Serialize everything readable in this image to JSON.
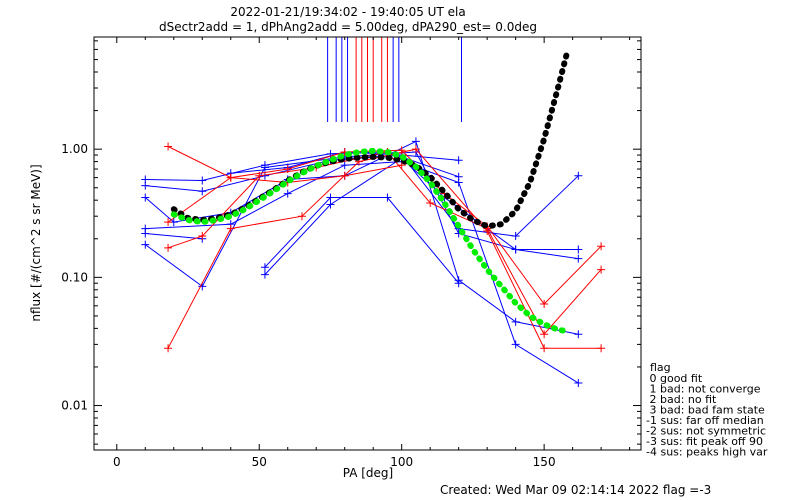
{
  "chart_data": {
    "type": "line",
    "title": "2022-01-21/19:34:02 - 19:40:05 UT ela",
    "subtitle": "dSectr2add = 1, dPhAng2add = 5.00deg, dPA290_est=    0.0deg",
    "xlabel": "PA [deg]",
    "ylabel": "nflux [#/(cm^2 s sr MeV)]",
    "xlim": [
      -8,
      184
    ],
    "ylim": [
      0.0045,
      7.5
    ],
    "yscale": "log",
    "xticks": [
      0,
      50,
      100,
      150
    ],
    "xtick_labels": [
      "0",
      "50",
      "100",
      "150"
    ],
    "yticks": [
      0.01,
      0.1,
      1
    ],
    "ytick_labels": [
      "0.01",
      "0.10",
      "1.00"
    ],
    "grid": false,
    "top_markers": {
      "blue": [
        74,
        77,
        79,
        81,
        97,
        99,
        121
      ],
      "red": [
        84,
        86,
        88,
        90,
        93,
        95
      ]
    },
    "series": [
      {
        "color": "#0000ff",
        "marker": "+",
        "x": [
          10,
          30,
          52,
          75,
          95,
          120
        ],
        "y": [
          0.58,
          0.57,
          0.75,
          0.92,
          0.95,
          0.61
        ]
      },
      {
        "color": "#0000ff",
        "marker": "+",
        "x": [
          10,
          30,
          52,
          75,
          100,
          120,
          140,
          162
        ],
        "y": [
          0.52,
          0.47,
          0.62,
          0.82,
          0.9,
          0.24,
          0.21,
          0.62
        ]
      },
      {
        "color": "#0000ff",
        "marker": "+",
        "x": [
          10,
          20,
          40,
          60,
          80,
          105,
          120,
          140,
          162
        ],
        "y": [
          0.42,
          0.27,
          0.32,
          0.58,
          0.62,
          1.15,
          0.095,
          0.045,
          0.036
        ]
      },
      {
        "color": "#0000ff",
        "marker": "+",
        "x": [
          10,
          30,
          52,
          80,
          105,
          120,
          140,
          162
        ],
        "y": [
          0.18,
          0.085,
          0.72,
          0.87,
          0.95,
          0.22,
          0.165,
          0.165
        ]
      },
      {
        "color": "#0000ff",
        "marker": "+",
        "x": [
          10,
          40,
          60,
          80,
          100,
          120,
          140,
          162
        ],
        "y": [
          0.24,
          0.26,
          0.45,
          0.75,
          0.8,
          0.55,
          0.03,
          0.015
        ]
      },
      {
        "color": "#0000ff",
        "marker": "+",
        "x": [
          52,
          75,
          100,
          115,
          140,
          162
        ],
        "y": [
          0.105,
          0.37,
          0.85,
          0.42,
          0.165,
          0.14
        ]
      },
      {
        "color": "#0000ff",
        "marker": "+",
        "x": [
          52,
          75,
          95,
          120
        ],
        "y": [
          0.12,
          0.42,
          0.42,
          0.09
        ]
      },
      {
        "color": "#0000ff",
        "marker": "+",
        "x": [
          40,
          60,
          80,
          100,
          120
        ],
        "y": [
          0.65,
          0.72,
          0.95,
          0.9,
          0.82
        ]
      },
      {
        "color": "#0000ff",
        "marker": "+",
        "x": [
          10,
          30
        ],
        "y": [
          0.22,
          0.2
        ]
      },
      {
        "color": "#ff0000",
        "marker": "+",
        "x": [
          18,
          40,
          60,
          80,
          100,
          115,
          130,
          150,
          170
        ],
        "y": [
          1.05,
          0.6,
          0.7,
          0.95,
          0.98,
          0.45,
          0.25,
          0.062,
          0.175
        ]
      },
      {
        "color": "#ff0000",
        "marker": "+",
        "x": [
          18,
          40,
          65,
          85,
          105,
          130,
          150,
          170
        ],
        "y": [
          0.028,
          0.24,
          0.3,
          0.8,
          1.0,
          0.23,
          0.028,
          0.028
        ]
      },
      {
        "color": "#ff0000",
        "marker": "+",
        "x": [
          18,
          30,
          50,
          70,
          95,
          110,
          130,
          150,
          170
        ],
        "y": [
          0.17,
          0.21,
          0.62,
          0.72,
          0.95,
          0.38,
          0.24,
          0.036,
          0.115
        ]
      },
      {
        "color": "#ff0000",
        "marker": "+",
        "x": [
          18,
          40,
          60,
          80,
          100
        ],
        "y": [
          0.27,
          0.6,
          0.55,
          0.62,
          0.75
        ]
      }
    ],
    "fits": [
      {
        "color": "#000000",
        "style": "dotted-thick",
        "x": [
          20,
          25,
          30,
          35,
          40,
          45,
          50,
          55,
          60,
          65,
          70,
          75,
          80,
          85,
          90,
          95,
          100,
          105,
          110,
          115,
          120,
          125,
          130,
          135,
          140,
          145,
          150,
          155,
          158
        ],
        "y": [
          0.34,
          0.29,
          0.28,
          0.29,
          0.31,
          0.35,
          0.41,
          0.48,
          0.57,
          0.66,
          0.74,
          0.8,
          0.84,
          0.86,
          0.87,
          0.86,
          0.82,
          0.74,
          0.61,
          0.46,
          0.34,
          0.28,
          0.25,
          0.26,
          0.33,
          0.55,
          1.2,
          3.1,
          5.6
        ]
      },
      {
        "color": "#00ee00",
        "style": "dotted-thick",
        "x": [
          20,
          25,
          30,
          35,
          40,
          45,
          50,
          55,
          60,
          65,
          70,
          75,
          80,
          85,
          90,
          95,
          100,
          105,
          110,
          115,
          120,
          125,
          130,
          135,
          140,
          145,
          150,
          155,
          158
        ],
        "y": [
          0.31,
          0.28,
          0.27,
          0.28,
          0.3,
          0.34,
          0.4,
          0.47,
          0.56,
          0.65,
          0.74,
          0.82,
          0.9,
          0.95,
          0.97,
          0.95,
          0.88,
          0.73,
          0.55,
          0.38,
          0.25,
          0.165,
          0.115,
          0.085,
          0.063,
          0.05,
          0.043,
          0.039,
          0.038
        ]
      }
    ],
    "legend": {
      "position": "right-bottom",
      "title": "flag",
      "entries": [
        " 0 good fit",
        " 1 bad: not converge",
        " 2 bad: no fit",
        " 3 bad: bad fam state",
        "-1 sus: far off median",
        "-2 sus: not symmetric",
        "-3 sus: fit peak off 90",
        "-4 sus: peaks high var"
      ]
    },
    "footer": "Created: Wed Mar 09 02:14:14 2022   flag =-3"
  }
}
